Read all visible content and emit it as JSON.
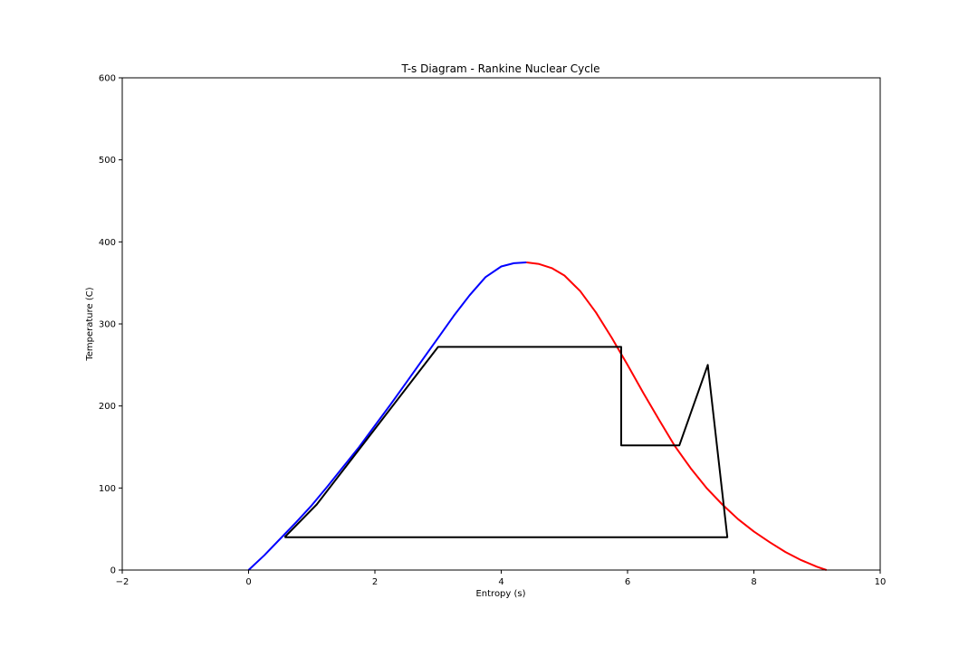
{
  "chart_data": {
    "type": "line",
    "title": "T-s Diagram - Rankine Nuclear Cycle",
    "xlabel": "Entropy (s)",
    "ylabel": "Temperature (C)",
    "xlim": [
      -2,
      10
    ],
    "ylim": [
      0,
      600
    ],
    "xticks": [
      -2,
      0,
      2,
      4,
      6,
      8,
      10
    ],
    "xtick_labels": [
      "−2",
      "0",
      "2",
      "4",
      "6",
      "8",
      "10"
    ],
    "yticks": [
      0,
      100,
      200,
      300,
      400,
      500,
      600
    ],
    "ytick_labels": [
      "0",
      "100",
      "200",
      "300",
      "400",
      "500",
      "600"
    ],
    "grid": false,
    "legend": "none",
    "series": [
      {
        "color": "#0000ff",
        "x": [
          0,
          0.25,
          0.5,
          0.75,
          1.0,
          1.25,
          1.5,
          1.75,
          2.0,
          2.25,
          2.5,
          2.75,
          3.0,
          3.25,
          3.5,
          3.75,
          4.0,
          4.2,
          4.4
        ],
        "y": [
          0,
          18,
          38,
          58,
          79,
          102,
          126,
          150,
          176,
          202,
          229,
          256,
          283,
          310,
          335,
          357,
          370,
          374,
          375
        ]
      },
      {
        "color": "#ff0000",
        "x": [
          4.4,
          4.6,
          4.8,
          5.0,
          5.25,
          5.5,
          5.75,
          6.0,
          6.25,
          6.5,
          6.75,
          7.0,
          7.25,
          7.5,
          7.75,
          8.0,
          8.25,
          8.5,
          8.75,
          9.0,
          9.15
        ],
        "y": [
          375,
          373,
          368,
          359,
          340,
          314,
          283,
          250,
          216,
          183,
          151,
          124,
          100,
          80,
          62,
          47,
          34,
          22,
          12,
          4,
          0
        ]
      },
      {
        "color": "#000000",
        "x": [
          0.57,
          1.08,
          3.0,
          5.9,
          5.9,
          6.82,
          7.27,
          7.58,
          0.57
        ],
        "y": [
          40,
          80,
          272,
          272,
          152,
          152,
          250,
          40,
          40
        ]
      }
    ]
  }
}
